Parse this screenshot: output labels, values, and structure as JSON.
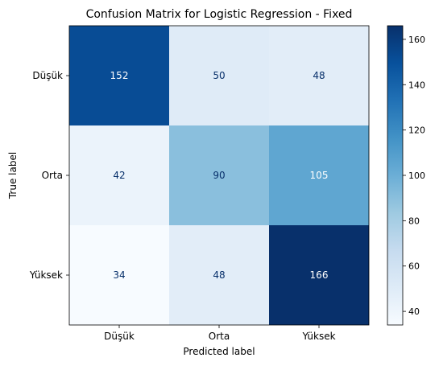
{
  "chart_data": {
    "type": "heatmap",
    "title": "Confusion Matrix for Logistic Regression - Fixed",
    "xlabel": "Predicted label",
    "ylabel": "True label",
    "x_categories": [
      "Düşük",
      "Orta",
      "Yüksek"
    ],
    "y_categories": [
      "Düşük",
      "Orta",
      "Yüksek"
    ],
    "values": [
      [
        152,
        50,
        48
      ],
      [
        42,
        90,
        105
      ],
      [
        34,
        48,
        166
      ]
    ],
    "colormap": "Blues",
    "colorbar": {
      "min": 34,
      "max": 166,
      "ticks": [
        "40",
        "60",
        "80",
        "100",
        "120",
        "140",
        "160"
      ]
    },
    "grid": false
  }
}
